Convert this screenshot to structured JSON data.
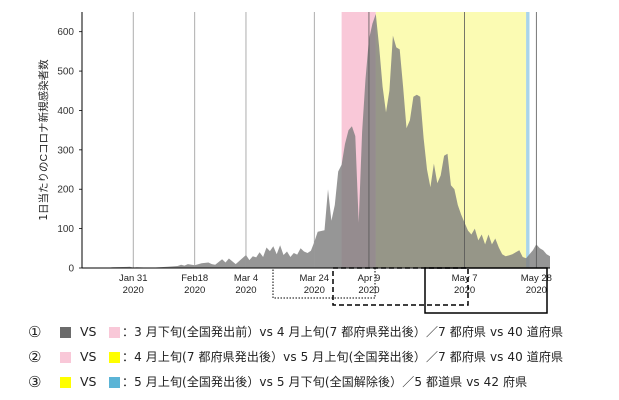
{
  "chart_data": {
    "type": "area",
    "ylabel": "1日当たりの",
    "ylabel_latin": "C",
    "ylabel_rest": "コロナ新規感染者数",
    "ylim": [
      0,
      650
    ],
    "yticks": [
      0,
      100,
      200,
      300,
      400,
      500,
      600
    ],
    "x_start": "2020-01-16",
    "x_end": "2020-06-01",
    "series_color": "#7f7f7f",
    "x_labels": [
      {
        "date": "2020-01-31",
        "line1": "Jan 31",
        "line2": "2020"
      },
      {
        "date": "2020-02-18",
        "line1": "Feb18",
        "line2": "2020"
      },
      {
        "date": "2020-03-04",
        "line1": "Mar 4",
        "line2": "2020"
      },
      {
        "date": "2020-03-24",
        "line1": "Mar 24",
        "line2": "2020"
      },
      {
        "date": "2020-04-09",
        "line1": "Apr 9",
        "line2": "2020"
      },
      {
        "date": "2020-05-07",
        "line1": "May 7",
        "line2": "2020"
      },
      {
        "date": "2020-05-28",
        "line1": "May 28",
        "line2": "2020"
      }
    ],
    "periods": [
      {
        "name": "3月下旬",
        "start": "2020-03-24",
        "end": "2020-04-06",
        "color": "#7f7f7f"
      },
      {
        "name": "4月上旬",
        "start": "2020-04-01",
        "end": "2020-04-11",
        "color": "#f9c8d8"
      },
      {
        "name": "5月上旬",
        "start": "2020-04-11",
        "end": "2020-05-25",
        "color": "#fbfbb3"
      },
      {
        "name": "5月下旬",
        "start": "2020-05-25",
        "end": "2020-05-26",
        "color": "#a9d4ea"
      }
    ],
    "points": [
      [
        "2020-01-16",
        1
      ],
      [
        "2020-01-24",
        1
      ],
      [
        "2020-01-25",
        2
      ],
      [
        "2020-01-30",
        3
      ],
      [
        "2020-01-31",
        1
      ],
      [
        "2020-02-01",
        2
      ],
      [
        "2020-02-04",
        1
      ],
      [
        "2020-02-06",
        1
      ],
      [
        "2020-02-10",
        3
      ],
      [
        "2020-02-13",
        5
      ],
      [
        "2020-02-14",
        8
      ],
      [
        "2020-02-15",
        6
      ],
      [
        "2020-02-16",
        10
      ],
      [
        "2020-02-18",
        7
      ],
      [
        "2020-02-20",
        12
      ],
      [
        "2020-02-22",
        14
      ],
      [
        "2020-02-23",
        10
      ],
      [
        "2020-02-24",
        8
      ],
      [
        "2020-02-26",
        22
      ],
      [
        "2020-02-27",
        14
      ],
      [
        "2020-02-28",
        24
      ],
      [
        "2020-03-01",
        10
      ],
      [
        "2020-03-04",
        33
      ],
      [
        "2020-03-05",
        20
      ],
      [
        "2020-03-06",
        30
      ],
      [
        "2020-03-07",
        27
      ],
      [
        "2020-03-08",
        40
      ],
      [
        "2020-03-09",
        28
      ],
      [
        "2020-03-10",
        52
      ],
      [
        "2020-03-11",
        43
      ],
      [
        "2020-03-12",
        55
      ],
      [
        "2020-03-13",
        35
      ],
      [
        "2020-03-14",
        58
      ],
      [
        "2020-03-15",
        33
      ],
      [
        "2020-03-16",
        42
      ],
      [
        "2020-03-17",
        28
      ],
      [
        "2020-03-18",
        38
      ],
      [
        "2020-03-19",
        34
      ],
      [
        "2020-03-20",
        50
      ],
      [
        "2020-03-21",
        42
      ],
      [
        "2020-03-22",
        38
      ],
      [
        "2020-03-23",
        44
      ],
      [
        "2020-03-24",
        66
      ],
      [
        "2020-03-25",
        92
      ],
      [
        "2020-03-26",
        94
      ],
      [
        "2020-03-27",
        96
      ],
      [
        "2020-03-28",
        200
      ],
      [
        "2020-03-29",
        120
      ],
      [
        "2020-03-30",
        160
      ],
      [
        "2020-03-31",
        245
      ],
      [
        "2020-04-01",
        262
      ],
      [
        "2020-04-02",
        315
      ],
      [
        "2020-04-03",
        350
      ],
      [
        "2020-04-04",
        360
      ],
      [
        "2020-04-05",
        335
      ],
      [
        "2020-04-06",
        115
      ],
      [
        "2020-04-07",
        345
      ],
      [
        "2020-04-08",
        480
      ],
      [
        "2020-04-09",
        580
      ],
      [
        "2020-04-10",
        620
      ],
      [
        "2020-04-11",
        645
      ],
      [
        "2020-04-12",
        560
      ],
      [
        "2020-04-13",
        460
      ],
      [
        "2020-04-14",
        395
      ],
      [
        "2020-04-15",
        450
      ],
      [
        "2020-04-16",
        590
      ],
      [
        "2020-04-17",
        560
      ],
      [
        "2020-04-18",
        555
      ],
      [
        "2020-04-19",
        460
      ],
      [
        "2020-04-20",
        355
      ],
      [
        "2020-04-21",
        375
      ],
      [
        "2020-04-22",
        435
      ],
      [
        "2020-04-23",
        440
      ],
      [
        "2020-04-24",
        435
      ],
      [
        "2020-04-25",
        330
      ],
      [
        "2020-04-26",
        250
      ],
      [
        "2020-04-27",
        205
      ],
      [
        "2020-04-28",
        265
      ],
      [
        "2020-04-29",
        215
      ],
      [
        "2020-04-30",
        235
      ],
      [
        "2020-05-01",
        285
      ],
      [
        "2020-05-02",
        290
      ],
      [
        "2020-05-03",
        210
      ],
      [
        "2020-05-04",
        200
      ],
      [
        "2020-05-05",
        160
      ],
      [
        "2020-05-06",
        135
      ],
      [
        "2020-05-07",
        115
      ],
      [
        "2020-05-08",
        95
      ],
      [
        "2020-05-09",
        85
      ],
      [
        "2020-05-10",
        100
      ],
      [
        "2020-05-11",
        70
      ],
      [
        "2020-05-12",
        85
      ],
      [
        "2020-05-13",
        60
      ],
      [
        "2020-05-14",
        85
      ],
      [
        "2020-05-15",
        60
      ],
      [
        "2020-05-16",
        75
      ],
      [
        "2020-05-17",
        52
      ],
      [
        "2020-05-18",
        35
      ],
      [
        "2020-05-19",
        30
      ],
      [
        "2020-05-20",
        32
      ],
      [
        "2020-05-21",
        35
      ],
      [
        "2020-05-22",
        40
      ],
      [
        "2020-05-23",
        45
      ],
      [
        "2020-05-24",
        28
      ],
      [
        "2020-05-25",
        25
      ],
      [
        "2020-05-26",
        35
      ],
      [
        "2020-05-27",
        45
      ],
      [
        "2020-05-28",
        60
      ],
      [
        "2020-05-29",
        50
      ],
      [
        "2020-05-30",
        45
      ],
      [
        "2020-05-31",
        35
      ],
      [
        "2020-06-01",
        30
      ]
    ],
    "legend": [
      {
        "num": "①",
        "vs": "VS",
        "c1": "#6b6b6b",
        "c2": "#f9c8d8",
        "text": "：3 月下旬(全国発出前）vs 4 月上旬(7 都府県発出後）／7 都府県 vs 40 道府県"
      },
      {
        "num": "②",
        "vs": "VS",
        "c1": "#f9c8d8",
        "c2": "#ffff00",
        "text": "：4 月上旬(7 都府県発出後）vs 5 月上旬(全国発出後）／7 都府県 vs 40 道府県"
      },
      {
        "num": "③",
        "vs": "VS",
        "c1": "#ffff00",
        "c2": "#5bb4d6",
        "text": "：5 月上旬(全国発出後）vs 5 月下旬(全国解除後）／5 都道県 vs 42 府県"
      }
    ]
  }
}
